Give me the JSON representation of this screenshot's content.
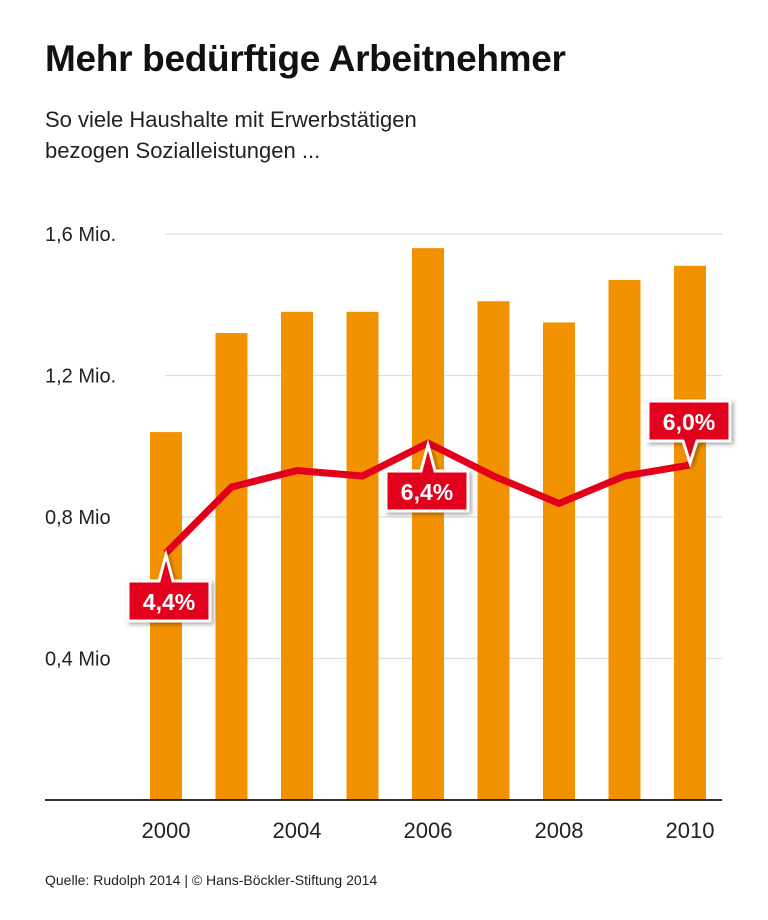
{
  "header": {
    "title": "Mehr bedürftige Arbeitnehmer",
    "subtitle_line1": "So viele Haushalte mit Erwerbstätigen",
    "subtitle_line2": "bezogen Sozialleistungen  ..."
  },
  "footer": {
    "source": "Quelle: Rudolph 2014 | © Hans-Böckler-Stiftung 2014"
  },
  "chart_data": {
    "type": "bar",
    "categories": [
      "2000",
      "",
      "2004",
      "",
      "2006",
      "",
      "2008",
      "",
      "2010"
    ],
    "series": [
      {
        "type": "bar",
        "color": "#f39200",
        "values": [
          1.04,
          1.32,
          1.38,
          1.38,
          1.56,
          1.41,
          1.35,
          1.47,
          1.51
        ]
      },
      {
        "type": "line",
        "color": "#e2001a",
        "unit": "%",
        "values": [
          4.4,
          5.6,
          5.9,
          5.8,
          6.4,
          5.8,
          5.3,
          5.8,
          6.0
        ]
      }
    ],
    "ylim": [
      0,
      1.6
    ],
    "yticks": [
      {
        "value": 0.4,
        "label": "0,4 Mio"
      },
      {
        "value": 0.8,
        "label": "0,8 Mio"
      },
      {
        "value": 1.2,
        "label": "1,2 Mio."
      },
      {
        "value": 1.6,
        "label": "1,6 Mio."
      }
    ],
    "callouts": [
      {
        "index": 0,
        "label": "4,4%",
        "position": "below"
      },
      {
        "index": 4,
        "label": "6,4%",
        "position": "below"
      },
      {
        "index": 8,
        "label": "6,0%",
        "position": "above"
      }
    ],
    "grid": true,
    "legend": "none"
  }
}
